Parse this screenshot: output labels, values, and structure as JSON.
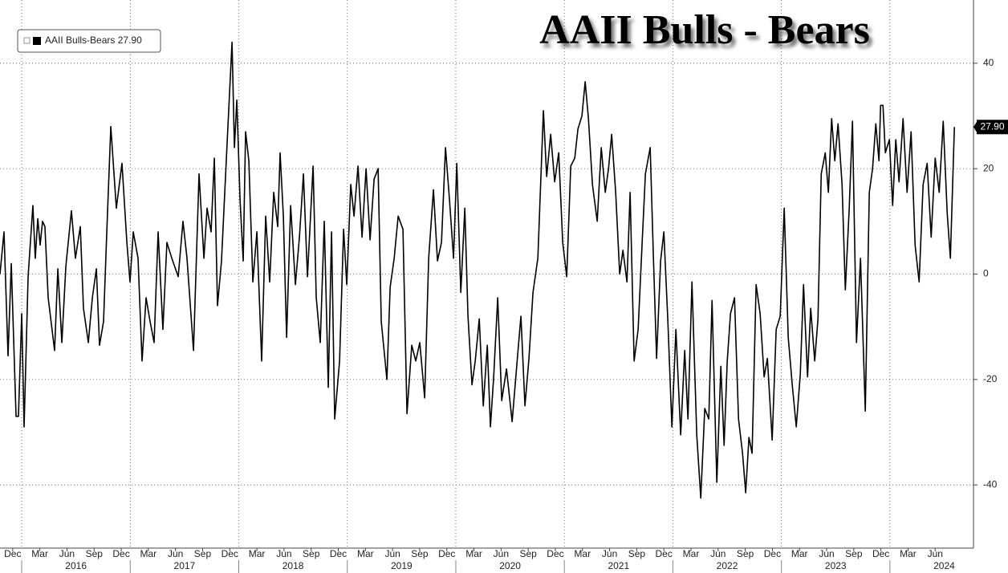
{
  "chart_data": {
    "type": "line",
    "title": "AAII Bulls - Bears",
    "legend": "upper left",
    "grid": true,
    "last_label": "27.90",
    "xlim": [
      2015.8,
      2024.77
    ],
    "ylim": [
      -52,
      52
    ],
    "yticks": [
      -40,
      -20,
      0,
      20,
      40
    ],
    "xticks": [
      {
        "value": 2015.917,
        "label": "Dec"
      },
      {
        "value": 2016.167,
        "label": "Mar"
      },
      {
        "value": 2016.417,
        "label": "Jun"
      },
      {
        "value": 2016.667,
        "label": "Sep"
      },
      {
        "value": 2016.917,
        "label": "Dec"
      },
      {
        "value": 2017.167,
        "label": "Mar"
      },
      {
        "value": 2017.417,
        "label": "Jun"
      },
      {
        "value": 2017.667,
        "label": "Sep"
      },
      {
        "value": 2017.917,
        "label": "Dec"
      },
      {
        "value": 2018.167,
        "label": "Mar"
      },
      {
        "value": 2018.417,
        "label": "Jun"
      },
      {
        "value": 2018.667,
        "label": "Sep"
      },
      {
        "value": 2018.917,
        "label": "Dec"
      },
      {
        "value": 2019.167,
        "label": "Mar"
      },
      {
        "value": 2019.417,
        "label": "Jun"
      },
      {
        "value": 2019.667,
        "label": "Sep"
      },
      {
        "value": 2019.917,
        "label": "Dec"
      },
      {
        "value": 2020.167,
        "label": "Mar"
      },
      {
        "value": 2020.417,
        "label": "Jun"
      },
      {
        "value": 2020.667,
        "label": "Sep"
      },
      {
        "value": 2020.917,
        "label": "Dec"
      },
      {
        "value": 2021.167,
        "label": "Mar"
      },
      {
        "value": 2021.417,
        "label": "Jun"
      },
      {
        "value": 2021.667,
        "label": "Sep"
      },
      {
        "value": 2021.917,
        "label": "Dec"
      },
      {
        "value": 2022.167,
        "label": "Mar"
      },
      {
        "value": 2022.417,
        "label": "Jun"
      },
      {
        "value": 2022.667,
        "label": "Sep"
      },
      {
        "value": 2022.917,
        "label": "Dec"
      },
      {
        "value": 2023.167,
        "label": "Mar"
      },
      {
        "value": 2023.417,
        "label": "Jun"
      },
      {
        "value": 2023.667,
        "label": "Sep"
      },
      {
        "value": 2023.917,
        "label": "Dec"
      },
      {
        "value": 2024.167,
        "label": "Mar"
      },
      {
        "value": 2024.417,
        "label": "Jun"
      }
    ],
    "xgroups": [
      2016,
      2017,
      2018,
      2019,
      2020,
      2021,
      2022,
      2023,
      2024
    ],
    "x": [
      2015.8,
      2015.837,
      2015.874,
      2015.904,
      2015.948,
      2015.97,
      2016.0,
      2016.022,
      2016.059,
      2016.103,
      2016.125,
      2016.148,
      2016.17,
      2016.192,
      2016.214,
      2016.244,
      2016.303,
      2016.333,
      2016.37,
      2016.407,
      2016.458,
      2016.495,
      2016.54,
      2016.569,
      2016.614,
      2016.651,
      2016.688,
      2016.717,
      2016.754,
      2016.784,
      2016.821,
      2016.872,
      2016.924,
      2016.969,
      2016.998,
      2017.028,
      2017.072,
      2017.109,
      2017.146,
      2017.183,
      2017.22,
      2017.257,
      2017.301,
      2017.338,
      2017.383,
      2017.442,
      2017.486,
      2017.523,
      2017.583,
      2017.634,
      2017.679,
      2017.708,
      2017.745,
      2017.775,
      2017.804,
      2017.841,
      2017.886,
      2017.938,
      2017.96,
      2017.982,
      2018.012,
      2018.041,
      2018.063,
      2018.093,
      2018.13,
      2018.167,
      2018.211,
      2018.248,
      2018.285,
      2018.322,
      2018.359,
      2018.381,
      2018.411,
      2018.441,
      2018.478,
      2018.522,
      2018.559,
      2018.596,
      2018.633,
      2018.685,
      2018.714,
      2018.751,
      2018.788,
      2018.825,
      2018.855,
      2018.884,
      2018.929,
      2018.966,
      2018.995,
      2019.032,
      2019.062,
      2019.099,
      2019.136,
      2019.173,
      2019.21,
      2019.247,
      2019.284,
      2019.313,
      2019.365,
      2019.395,
      2019.432,
      2019.469,
      2019.513,
      2019.55,
      2019.594,
      2019.631,
      2019.668,
      2019.713,
      2019.75,
      2019.794,
      2019.831,
      2019.868,
      2019.905,
      2019.942,
      2019.979,
      2020.009,
      2020.046,
      2020.083,
      2020.112,
      2020.149,
      2020.179,
      2020.216,
      2020.253,
      2020.29,
      2020.319,
      2020.349,
      2020.386,
      2020.423,
      2020.467,
      2020.519,
      2020.571,
      2020.6,
      2020.637,
      2020.674,
      2020.711,
      2020.756,
      2020.807,
      2020.837,
      2020.874,
      2020.911,
      2020.948,
      2020.985,
      2021.022,
      2021.059,
      2021.096,
      2021.125,
      2021.162,
      2021.192,
      2021.222,
      2021.259,
      2021.303,
      2021.34,
      2021.377,
      2021.407,
      2021.436,
      2021.473,
      2021.51,
      2021.54,
      2021.577,
      2021.606,
      2021.643,
      2021.68,
      2021.717,
      2021.747,
      2021.791,
      2021.821,
      2021.85,
      2021.887,
      2021.917,
      2021.954,
      2021.991,
      2022.028,
      2022.072,
      2022.109,
      2022.139,
      2022.176,
      2022.22,
      2022.257,
      2022.294,
      2022.331,
      2022.361,
      2022.405,
      2022.442,
      2022.472,
      2022.501,
      2022.531,
      2022.568,
      2022.605,
      2022.642,
      2022.671,
      2022.701,
      2022.73,
      2022.767,
      2022.804,
      2022.841,
      2022.871,
      2022.915,
      2022.952,
      2022.989,
      2023.026,
      2023.063,
      2023.1,
      2023.137,
      2023.174,
      2023.204,
      2023.241,
      2023.27,
      2023.307,
      2023.337,
      2023.367,
      2023.404,
      2023.433,
      2023.463,
      2023.492,
      2023.522,
      2023.559,
      2023.589,
      2023.625,
      2023.655,
      2023.692,
      2023.729,
      2023.773,
      2023.81,
      2023.84,
      2023.87,
      2023.899,
      2023.914,
      2023.936,
      2023.958,
      2023.995,
      2024.025,
      2024.054,
      2024.084,
      2024.121,
      2024.158,
      2024.195,
      2024.232,
      2024.269,
      2024.306,
      2024.343,
      2024.38,
      2024.417,
      2024.454,
      2024.491,
      2024.528,
      2024.557,
      2024.594
    ],
    "series": [
      {
        "name": "AAII Bulls-Bears",
        "color": "#000000",
        "values": [
          0,
          8,
          -15.5,
          2,
          -27,
          -27,
          -7.5,
          -29,
          -0.5,
          13,
          3,
          10.5,
          5.5,
          10,
          9,
          -4.5,
          -14.5,
          1,
          -13,
          1.5,
          12,
          3,
          9,
          -6.5,
          -13,
          -4.5,
          1,
          -13.5,
          -9,
          8,
          28,
          12.5,
          21,
          6,
          -1.5,
          8,
          3,
          -16.5,
          -4.5,
          -9,
          -13,
          8,
          -10.5,
          6,
          3,
          -0.5,
          10,
          3,
          -14.5,
          19,
          3,
          12.5,
          8,
          22,
          -6,
          2.5,
          22,
          44,
          24,
          33,
          14,
          2.5,
          27,
          21.5,
          -1.5,
          8,
          -16.5,
          11,
          -1.5,
          15.5,
          9,
          23,
          11,
          -12,
          13,
          -2,
          7,
          19,
          -0.5,
          20.5,
          -4.5,
          -13,
          10,
          -21.5,
          8,
          -27.5,
          -16.5,
          8.5,
          -2,
          17,
          11,
          20.5,
          7,
          20,
          6.5,
          18,
          20,
          -9,
          -20,
          -2.5,
          3,
          11,
          8.5,
          -26.5,
          -13.5,
          -16.5,
          -13,
          -23.5,
          3,
          16,
          2.5,
          6,
          24,
          14,
          3,
          21,
          -3.5,
          12.5,
          -8,
          -21,
          -16.5,
          -8.5,
          -25,
          -13.5,
          -29,
          -19.5,
          -4.5,
          -24,
          -18,
          -28,
          -15,
          -8,
          -25,
          -16,
          -3.5,
          3,
          31,
          18.5,
          26.5,
          17.5,
          23,
          6,
          -0.5,
          20.5,
          22,
          27.5,
          30,
          36.5,
          29.5,
          17,
          10,
          24,
          15.5,
          20,
          26.5,
          15.5,
          0,
          4.5,
          -1.5,
          15.5,
          -16.5,
          -10.5,
          6,
          19,
          24,
          3,
          -16,
          2.5,
          8,
          -9,
          -29,
          -10.5,
          -30.5,
          -14.5,
          -27.5,
          -1.5,
          -30.5,
          -42.5,
          -25.5,
          -27.5,
          -5,
          -39.5,
          -17.5,
          -32.5,
          -16.5,
          -7.5,
          -4.5,
          -27.5,
          -34,
          -41.5,
          -31,
          -34,
          -2,
          -7.5,
          -19.5,
          -16,
          -31.5,
          -10.5,
          -8,
          12.5,
          -12,
          -21,
          -29,
          -19,
          -2,
          -19.5,
          -6.5,
          -16.5,
          -8.5,
          19,
          23,
          15.5,
          29.5,
          21.5,
          28.5,
          17,
          -3,
          12.5,
          29,
          -13,
          3,
          -26,
          15.5,
          20,
          28.5,
          21.5,
          32,
          32,
          23,
          25.5,
          13,
          25.5,
          17.5,
          29.5,
          15.5,
          27,
          5.5,
          -1.5,
          17,
          21,
          7,
          22,
          15.5,
          29,
          11.5,
          3,
          27.9
        ]
      }
    ]
  }
}
